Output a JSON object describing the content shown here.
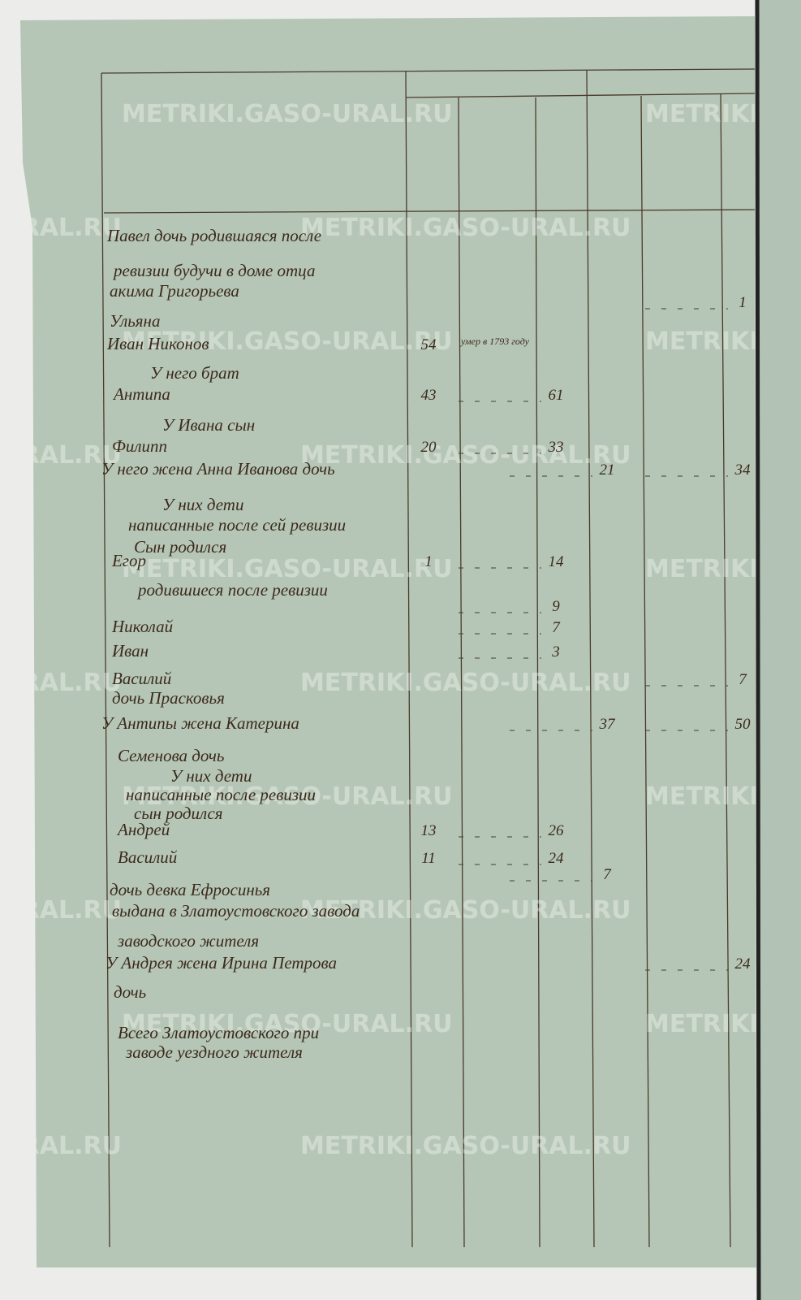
{
  "watermark": "METRIKI.GASO-URAL.RU",
  "rows": [
    {
      "text": "Павел дочь родившаяся после"
    },
    {
      "text": "ревизии будучи в доме отца"
    },
    {
      "text": "акима Григорьева"
    },
    {
      "cols": {
        "5": "1"
      }
    },
    {
      "text": "Ульяна"
    },
    {
      "text": "Иван Никонов",
      "cols": {
        "0": "54",
        "1": "умер в 1793 году"
      }
    },
    {
      "text": "У него брат"
    },
    {
      "text": "Антипа",
      "cols": {
        "0": "43",
        "2": "61"
      }
    },
    {
      "text": "У Ивана сын"
    },
    {
      "text": "Филипп",
      "cols": {
        "0": "20",
        "2": "33"
      }
    },
    {
      "text": "У него жена Анна Иванова дочь",
      "cols": {
        "3": "21",
        "5": "34"
      }
    },
    {
      "text": "У них дети"
    },
    {
      "text": "написанные после сей ревизии"
    },
    {
      "text": "Сын родился"
    },
    {
      "text": "Егор",
      "cols": {
        "0": "1",
        "2": "14"
      }
    },
    {
      "text": "родившиеся после ревизии"
    },
    {
      "cols": {
        "2": "9"
      }
    },
    {
      "text": "Николай",
      "cols": {
        "2": "7"
      }
    },
    {
      "text": "Иван",
      "cols": {
        "2": "3"
      }
    },
    {
      "text": "Василий",
      "cols": {
        "5": "7"
      }
    },
    {
      "text": "дочь Прасковья"
    },
    {
      "text": "У Антипы жена Катерина",
      "cols": {
        "3": "37",
        "5": "50"
      }
    },
    {
      "text": "Семенова дочь"
    },
    {
      "text": "У них дети"
    },
    {
      "text": "написанные после ревизии"
    },
    {
      "text": "сын родился"
    },
    {
      "text": "Андрей",
      "cols": {
        "0": "13",
        "2": "26"
      }
    },
    {
      "text": "Василий",
      "cols": {
        "0": "11",
        "2": "24"
      }
    },
    {
      "cols": {
        "3": "7"
      }
    },
    {
      "text": "дочь девка Ефросинья"
    },
    {
      "text": "выдана в Златоустовского завода"
    },
    {
      "text": "заводского жителя"
    },
    {
      "text": "У Андрея жена Ирина Петрова",
      "cols": {
        "5": "24"
      }
    },
    {
      "text": "дочь"
    },
    {
      "text": "Всего Златоустовского при"
    },
    {
      "text": "заводе уездного жителя"
    }
  ]
}
